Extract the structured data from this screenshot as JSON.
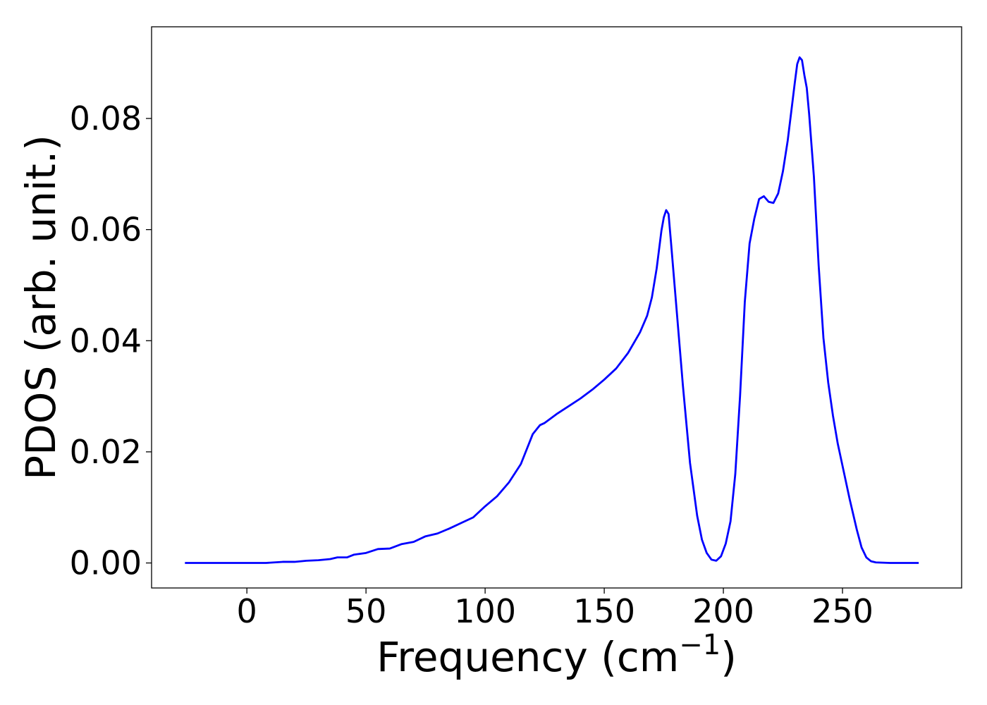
{
  "chart_data": {
    "type": "line",
    "xlabel": "Frequency (cm",
    "xlabel_exponent": "−1",
    "xlabel_close": ")",
    "ylabel": "PDOS (arb. unit.)",
    "xlim": [
      -40,
      300
    ],
    "ylim": [
      -0.0045,
      0.0965
    ],
    "xticks": [
      0,
      50,
      100,
      150,
      200,
      250
    ],
    "xtick_labels": [
      "0",
      "50",
      "100",
      "150",
      "200",
      "250"
    ],
    "yticks": [
      0.0,
      0.02,
      0.04,
      0.06,
      0.08
    ],
    "ytick_labels": [
      "0.00",
      "0.02",
      "0.04",
      "0.06",
      "0.08"
    ],
    "grid": false,
    "series": [
      {
        "color": "#0000ff",
        "x": [
          -26,
          -10,
          0,
          8,
          15,
          20,
          25,
          30,
          35,
          38,
          42,
          45,
          50,
          55,
          60,
          65,
          70,
          75,
          80,
          85,
          90,
          95,
          100,
          105,
          110,
          115,
          120,
          123,
          125,
          130,
          135,
          140,
          145,
          150,
          155,
          160,
          165,
          168,
          170,
          172,
          174,
          175,
          176,
          177,
          178,
          180,
          183,
          186,
          189,
          191,
          193,
          195,
          197,
          199,
          201,
          203,
          205,
          207,
          209,
          211,
          213,
          215,
          217,
          219,
          221,
          223,
          225,
          227,
          229,
          230,
          231,
          232,
          233,
          234,
          235,
          236,
          238,
          240,
          242,
          244,
          246,
          248,
          250,
          253,
          256,
          258,
          260,
          262,
          264,
          270,
          282
        ],
        "y": [
          0.0,
          0.0,
          0.0,
          0.0,
          0.0002,
          0.0002,
          0.0004,
          0.0005,
          0.0007,
          0.001,
          0.001,
          0.0015,
          0.0018,
          0.0025,
          0.0026,
          0.0034,
          0.0038,
          0.0048,
          0.0053,
          0.0062,
          0.0072,
          0.0082,
          0.0102,
          0.012,
          0.0145,
          0.0178,
          0.0232,
          0.0248,
          0.0252,
          0.0268,
          0.0282,
          0.0296,
          0.0312,
          0.033,
          0.035,
          0.0378,
          0.0415,
          0.0445,
          0.0478,
          0.053,
          0.0598,
          0.0622,
          0.0635,
          0.0628,
          0.0578,
          0.0475,
          0.032,
          0.018,
          0.0085,
          0.0042,
          0.0018,
          0.0006,
          0.0004,
          0.0012,
          0.0035,
          0.0075,
          0.016,
          0.03,
          0.047,
          0.0575,
          0.062,
          0.0655,
          0.066,
          0.065,
          0.0648,
          0.0665,
          0.0705,
          0.076,
          0.083,
          0.0865,
          0.0898,
          0.091,
          0.0905,
          0.0878,
          0.0855,
          0.0808,
          0.0695,
          0.0535,
          0.0405,
          0.0325,
          0.0265,
          0.0215,
          0.0175,
          0.0115,
          0.006,
          0.0028,
          0.001,
          0.0003,
          0.0001,
          0.0,
          0.0
        ]
      }
    ]
  }
}
